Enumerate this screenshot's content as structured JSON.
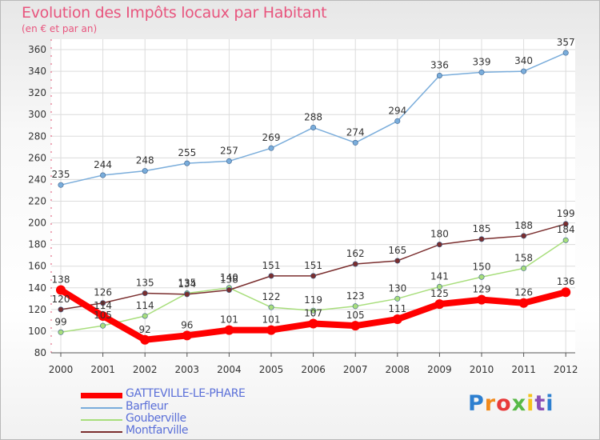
{
  "header": {
    "title": "Evolution des Impôts locaux par Habitant",
    "subtitle": "(en € et par an)"
  },
  "logo": {
    "text": "Proxiti"
  },
  "chart_data": {
    "type": "line",
    "title": "Evolution des Impôts locaux par Habitant",
    "subtitle": "(en € et par an)",
    "x": [
      "2000",
      "2001",
      "2002",
      "2003",
      "2004",
      "2005",
      "2006",
      "2007",
      "2008",
      "2009",
      "2010",
      "2011",
      "2012"
    ],
    "ylim": [
      80,
      360
    ],
    "yticks": [
      80,
      100,
      120,
      140,
      160,
      180,
      200,
      220,
      240,
      260,
      280,
      300,
      320,
      340,
      360
    ],
    "grid": true,
    "legend_position": "bottom-left",
    "series": [
      {
        "name": "GATTEVILLE-LE-PHARE",
        "color": "#ff0000",
        "values": [
          138,
          114,
          92,
          96,
          101,
          101,
          107,
          105,
          111,
          125,
          129,
          126,
          136
        ]
      },
      {
        "name": "Barfleur",
        "color": "#7aaddb",
        "values": [
          235,
          244,
          248,
          255,
          257,
          269,
          288,
          274,
          294,
          336,
          339,
          340,
          357
        ]
      },
      {
        "name": "Gouberville",
        "color": "#a8de7c",
        "values": [
          99,
          105,
          114,
          135,
          140,
          122,
          119,
          123,
          130,
          141,
          150,
          158,
          184
        ]
      },
      {
        "name": "Montfarville",
        "color": "#7a2e2e",
        "values": [
          120,
          126,
          135,
          134,
          138,
          151,
          151,
          162,
          165,
          180,
          185,
          188,
          199
        ]
      }
    ]
  }
}
